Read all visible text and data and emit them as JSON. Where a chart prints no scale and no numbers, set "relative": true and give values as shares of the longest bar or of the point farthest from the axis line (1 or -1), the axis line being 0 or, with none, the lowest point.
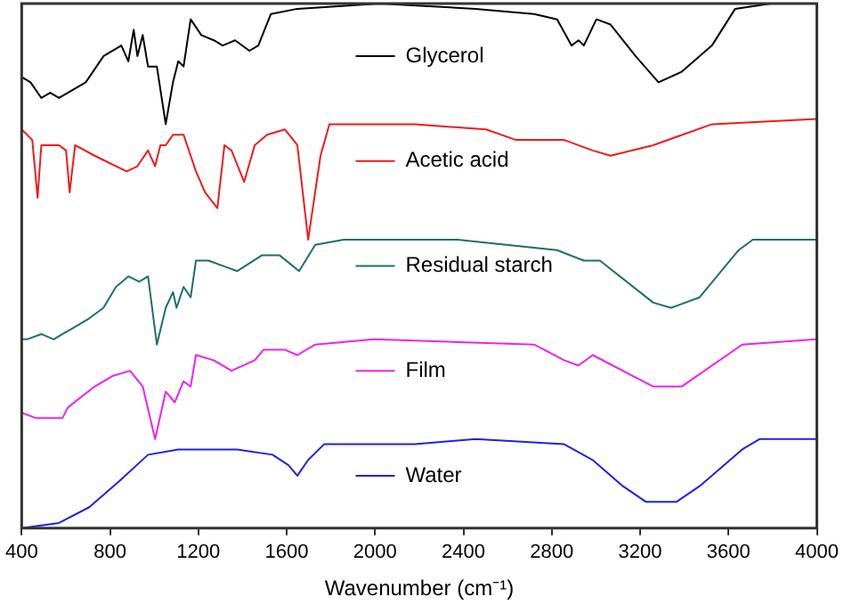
{
  "chart_data": {
    "type": "line",
    "relative": true,
    "xlabel": "Wavenumber (cm⁻¹)",
    "xlim": [
      400,
      4000
    ],
    "xticks": [
      400,
      800,
      1200,
      1600,
      2000,
      2400,
      2800,
      3200,
      3600,
      4000
    ],
    "grid": false,
    "legend": "center",
    "marker": "none",
    "line_style": "solid",
    "series": [
      {
        "name": "Glycerol",
        "color": "#000000",
        "x": [
          400,
          440,
          489,
          529,
          569,
          609,
          690,
          771,
          851,
          883,
          907,
          924,
          948,
          972,
          1012,
          1052,
          1085,
          1109,
          1133,
          1165,
          1213,
          1270,
          1310,
          1366,
          1431,
          1471,
          1528,
          1648,
          2019,
          2454,
          2720,
          2824,
          2889,
          2921,
          2945,
          3002,
          3066,
          3179,
          3283,
          3388,
          3525,
          3630,
          3791,
          4000
        ],
        "values": [
          0.86,
          0.85,
          0.82,
          0.83,
          0.82,
          0.83,
          0.85,
          0.9,
          0.92,
          0.89,
          0.95,
          0.9,
          0.94,
          0.88,
          0.88,
          0.77,
          0.85,
          0.89,
          0.88,
          0.97,
          0.94,
          0.93,
          0.92,
          0.93,
          0.91,
          0.92,
          0.98,
          0.99,
          1,
          0.99,
          0.98,
          0.97,
          0.92,
          0.93,
          0.92,
          0.97,
          0.96,
          0.9,
          0.85,
          0.87,
          0.92,
          0.99,
          1,
          1
        ]
      },
      {
        "name": "Acetic acid",
        "color": "#ee1c1c",
        "x": [
          400,
          448,
          472,
          489,
          569,
          601,
          617,
          642,
          730,
          875,
          924,
          972,
          1004,
          1028,
          1052,
          1085,
          1133,
          1189,
          1230,
          1286,
          1318,
          1350,
          1407,
          1455,
          1511,
          1592,
          1648,
          1697,
          1753,
          1793,
          2180,
          2502,
          2639,
          2856,
          2985,
          3066,
          3259,
          3525,
          4000
        ],
        "values": [
          0.76,
          0.74,
          0.63,
          0.73,
          0.73,
          0.72,
          0.64,
          0.73,
          0.71,
          0.68,
          0.69,
          0.72,
          0.69,
          0.73,
          0.73,
          0.75,
          0.75,
          0.68,
          0.64,
          0.61,
          0.73,
          0.72,
          0.66,
          0.73,
          0.75,
          0.76,
          0.73,
          0.55,
          0.71,
          0.77,
          0.77,
          0.76,
          0.74,
          0.74,
          0.72,
          0.71,
          0.73,
          0.77,
          0.78
        ]
      },
      {
        "name": "Residual starch",
        "color": "#1e6e6e",
        "x": [
          400,
          424,
          489,
          545,
          585,
          626,
          706,
          770,
          827,
          883,
          932,
          972,
          1012,
          1052,
          1085,
          1101,
          1133,
          1165,
          1189,
          1246,
          1375,
          1487,
          1568,
          1656,
          1729,
          1858,
          2373,
          2824,
          2945,
          3018,
          3259,
          3340,
          3469,
          3646,
          3710,
          4000
        ],
        "values": [
          0.36,
          0.36,
          0.37,
          0.36,
          0.37,
          0.38,
          0.4,
          0.42,
          0.46,
          0.48,
          0.47,
          0.48,
          0.35,
          0.42,
          0.45,
          0.42,
          0.46,
          0.44,
          0.51,
          0.51,
          0.49,
          0.52,
          0.52,
          0.49,
          0.54,
          0.55,
          0.55,
          0.53,
          0.51,
          0.51,
          0.43,
          0.42,
          0.44,
          0.53,
          0.55,
          0.55
        ]
      },
      {
        "name": "Film",
        "color": "#ee22ee",
        "x": [
          400,
          464,
          545,
          585,
          609,
          730,
          811,
          891,
          948,
          1004,
          1052,
          1093,
          1133,
          1165,
          1189,
          1270,
          1350,
          1455,
          1495,
          1592,
          1648,
          1729,
          1995,
          2720,
          2856,
          2921,
          2985,
          3259,
          3388,
          3662,
          4000
        ],
        "values": [
          0.22,
          0.21,
          0.21,
          0.21,
          0.23,
          0.27,
          0.29,
          0.3,
          0.27,
          0.17,
          0.26,
          0.24,
          0.28,
          0.27,
          0.33,
          0.32,
          0.3,
          0.32,
          0.34,
          0.34,
          0.33,
          0.35,
          0.36,
          0.35,
          0.32,
          0.31,
          0.33,
          0.27,
          0.27,
          0.35,
          0.36
        ]
      },
      {
        "name": "Water",
        "color": "#2222dd",
        "x": [
          400,
          569,
          706,
          843,
          972,
          1109,
          1375,
          1536,
          1608,
          1648,
          1697,
          1769,
          2180,
          2454,
          2856,
          2985,
          3122,
          3227,
          3364,
          3469,
          3662,
          3742,
          4000
        ],
        "values": [
          0,
          0.01,
          0.04,
          0.09,
          0.14,
          0.15,
          0.15,
          0.14,
          0.12,
          0.1,
          0.13,
          0.16,
          0.16,
          0.17,
          0.16,
          0.13,
          0.08,
          0.05,
          0.05,
          0.08,
          0.15,
          0.17,
          0.17
        ]
      }
    ]
  }
}
